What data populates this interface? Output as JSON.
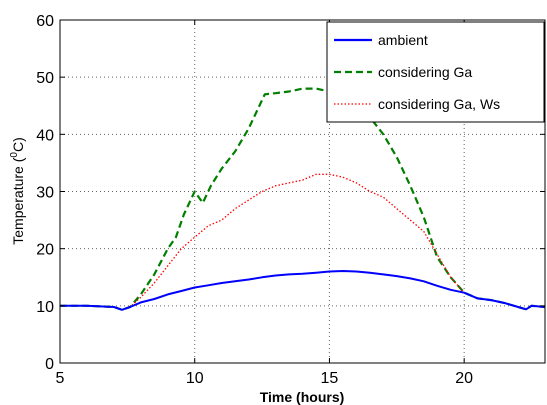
{
  "chart_data": {
    "type": "line",
    "title": "",
    "xlabel": "Time (hours)",
    "ylabel_main": "Temperature (",
    "ylabel_sup": "0",
    "ylabel_end": "C)",
    "xlim": [
      5,
      23
    ],
    "ylim": [
      0,
      60
    ],
    "x_ticks": [
      5,
      10,
      15,
      20
    ],
    "y_ticks": [
      0,
      10,
      20,
      30,
      40,
      50,
      60
    ],
    "grid": true,
    "legend_position": "top-right",
    "series": [
      {
        "name": "ambient",
        "color": "#0000ff",
        "style": "solid",
        "x": [
          5,
          6,
          7,
          7.3,
          7.6,
          8,
          8.5,
          9,
          9.5,
          10,
          10.5,
          11,
          11.5,
          12,
          12.5,
          13,
          13.5,
          14,
          14.5,
          15,
          15.5,
          16,
          16.5,
          17,
          17.5,
          18,
          18.5,
          19,
          19.5,
          20,
          20.5,
          21,
          21.5,
          22,
          22.3,
          22.5,
          23
        ],
        "y": [
          10,
          10,
          9.8,
          9.3,
          9.8,
          10.6,
          11.2,
          12,
          12.6,
          13.2,
          13.6,
          14,
          14.3,
          14.6,
          15,
          15.3,
          15.5,
          15.6,
          15.8,
          16,
          16.1,
          16,
          15.8,
          15.5,
          15.2,
          14.8,
          14.3,
          13.5,
          12.8,
          12.3,
          11.3,
          11,
          10.5,
          9.8,
          9.4,
          10,
          9.8
        ]
      },
      {
        "name": "considering Ga",
        "color": "#007f00",
        "style": "dashed",
        "x": [
          5,
          6,
          7,
          7.3,
          7.6,
          8,
          8.5,
          9,
          9.3,
          9.6,
          10,
          10.3,
          10.6,
          11,
          11.5,
          12,
          12.3,
          12.6,
          13,
          13.5,
          14,
          14.5,
          15,
          15.5,
          16,
          16.5,
          17,
          17.5,
          18,
          18.5,
          19,
          19.5,
          20,
          20.5,
          21,
          21.5,
          22,
          22.3,
          22.5,
          23
        ],
        "y": [
          10,
          10,
          9.8,
          9.3,
          9.8,
          12,
          15.5,
          20,
          22,
          26,
          30,
          28,
          31,
          34,
          37,
          41,
          44,
          47,
          47.2,
          47.5,
          48,
          48,
          47.5,
          46.5,
          45,
          43,
          40,
          36,
          31,
          25.5,
          18.5,
          15,
          12.3,
          11.3,
          11,
          10.5,
          9.8,
          9.4,
          10,
          9.8
        ]
      },
      {
        "name": "considering Ga, Ws",
        "color": "#ff0000",
        "style": "dotted",
        "x": [
          5,
          6,
          7,
          7.3,
          7.6,
          8,
          8.5,
          9,
          9.5,
          10,
          10.5,
          11,
          11.5,
          12,
          12.5,
          13,
          13.5,
          14,
          14.5,
          15,
          15.5,
          16,
          16.5,
          17,
          17.5,
          18,
          18.5,
          19,
          19.5,
          20,
          20.5,
          21,
          21.5,
          22,
          22.3,
          22.5,
          23
        ],
        "y": [
          10,
          10,
          9.8,
          9.3,
          9.8,
          11.5,
          14,
          17,
          20,
          22,
          24,
          25,
          27,
          28.5,
          30,
          31,
          31.5,
          32,
          33,
          33,
          32.5,
          31.5,
          30,
          29,
          27,
          25,
          23,
          19,
          15,
          12.3,
          11.3,
          11,
          10.5,
          9.8,
          9.4,
          10,
          9.8
        ]
      }
    ]
  }
}
